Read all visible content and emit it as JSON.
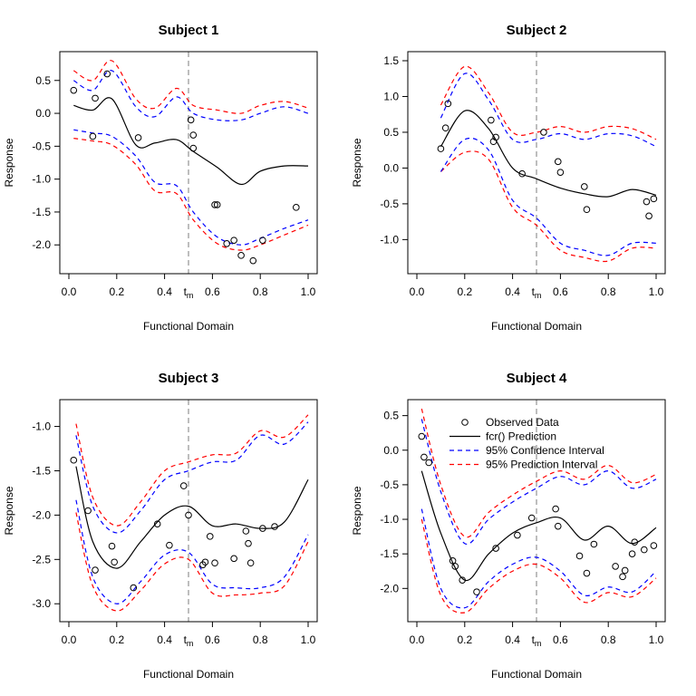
{
  "colors": {
    "prediction": "#000000",
    "confidence": "#0000ff",
    "prediction_interval": "#ff0000",
    "tm_line": "#bebebe"
  },
  "legend": {
    "placement": "top-right (inside Subject 4 panel)",
    "items": [
      {
        "label": "Observed Data",
        "style": "points"
      },
      {
        "label": "fcr() Prediction",
        "style": "solid",
        "color": "#000000"
      },
      {
        "label": "95% Confidence Interval",
        "style": "dashed",
        "color": "#0000ff"
      },
      {
        "label": "95% Prediction Interval",
        "style": "dashed",
        "color": "#ff0000"
      }
    ]
  },
  "chart_data": [
    {
      "type": "line",
      "title": "Subject 1",
      "xlabel": "Functional Domain",
      "ylabel": "Response",
      "xlim": [
        0,
        1
      ],
      "ylim": [
        -2.3,
        0.8
      ],
      "xticks": [
        "0.0",
        "0.2",
        "0.4",
        "0.6",
        "0.8",
        "1.0"
      ],
      "xtick_values": [
        0,
        0.2,
        0.4,
        0.6,
        0.8,
        1.0
      ],
      "yticks": [
        "0.5",
        "0.0",
        "-0.5",
        "-1.0",
        "-1.5",
        "-2.0"
      ],
      "ytick_values": [
        0.5,
        0,
        -0.5,
        -1.0,
        -1.5,
        -2.0
      ],
      "tm": 0.5,
      "tm_label": "t",
      "tm_sub": "m",
      "x": [
        0.02,
        0.1,
        0.18,
        0.28,
        0.36,
        0.45,
        0.52,
        0.62,
        0.72,
        0.8,
        0.9,
        1.0
      ],
      "prediction": [
        0.12,
        0.05,
        0.22,
        -0.48,
        -0.45,
        -0.4,
        -0.58,
        -0.82,
        -1.08,
        -0.88,
        -0.8,
        -0.8
      ],
      "confidence_upper": [
        0.5,
        0.35,
        0.65,
        0.1,
        -0.05,
        0.25,
        0.0,
        -0.1,
        -0.1,
        0.0,
        0.1,
        0.0
      ],
      "confidence_lower": [
        -0.25,
        -0.3,
        -0.35,
        -0.65,
        -1.05,
        -1.1,
        -1.5,
        -1.88,
        -2.0,
        -1.9,
        -1.75,
        -1.62
      ],
      "prediction_upper": [
        0.65,
        0.5,
        0.8,
        0.22,
        0.08,
        0.38,
        0.12,
        0.05,
        0.0,
        0.12,
        0.18,
        0.08
      ],
      "prediction_lower": [
        -0.38,
        -0.42,
        -0.48,
        -0.78,
        -1.18,
        -1.22,
        -1.62,
        -1.98,
        -2.08,
        -2.0,
        -1.85,
        -1.7
      ],
      "observed": [
        [
          0.02,
          0.35
        ],
        [
          0.1,
          -0.35
        ],
        [
          0.11,
          0.23
        ],
        [
          0.16,
          0.6
        ],
        [
          0.29,
          -0.37
        ],
        [
          0.51,
          -0.1
        ],
        [
          0.52,
          -0.33
        ],
        [
          0.52,
          -0.53
        ],
        [
          0.61,
          -1.39
        ],
        [
          0.62,
          -1.39
        ],
        [
          0.66,
          -1.98
        ],
        [
          0.69,
          -1.93
        ],
        [
          0.72,
          -2.16
        ],
        [
          0.77,
          -2.24
        ],
        [
          0.81,
          -1.93
        ],
        [
          0.95,
          -1.43
        ]
      ]
    },
    {
      "type": "line",
      "title": "Subject 2",
      "xlabel": "Functional Domain",
      "ylabel": "Response",
      "xlim": [
        0,
        1
      ],
      "ylim": [
        -1.35,
        1.5
      ],
      "xticks": [
        "0.0",
        "0.2",
        "0.4",
        "0.6",
        "0.8",
        "1.0"
      ],
      "xtick_values": [
        0,
        0.2,
        0.4,
        0.6,
        0.8,
        1.0
      ],
      "yticks": [
        "1.5",
        "1.0",
        "0.5",
        "0.0",
        "-0.5",
        "-1.0"
      ],
      "ytick_values": [
        1.5,
        1.0,
        0.5,
        0,
        -0.5,
        -1.0
      ],
      "tm": 0.5,
      "tm_label": "t",
      "tm_sub": "m",
      "x": [
        0.1,
        0.2,
        0.3,
        0.4,
        0.5,
        0.6,
        0.7,
        0.8,
        0.9,
        1.0
      ],
      "prediction": [
        0.3,
        0.8,
        0.55,
        0.0,
        -0.15,
        -0.28,
        -0.36,
        -0.4,
        -0.3,
        -0.38
      ],
      "confidence_upper": [
        0.7,
        1.32,
        0.95,
        0.4,
        0.4,
        0.48,
        0.4,
        0.48,
        0.45,
        0.3
      ],
      "confidence_lower": [
        -0.05,
        0.4,
        0.25,
        -0.45,
        -0.7,
        -1.05,
        -1.15,
        -1.22,
        -1.05,
        -1.05
      ],
      "prediction_upper": [
        0.88,
        1.42,
        1.05,
        0.5,
        0.5,
        0.58,
        0.5,
        0.58,
        0.55,
        0.4
      ],
      "prediction_lower": [
        -0.05,
        0.22,
        0.12,
        -0.55,
        -0.8,
        -1.15,
        -1.25,
        -1.3,
        -1.12,
        -1.12
      ],
      "observed": [
        [
          0.1,
          0.27
        ],
        [
          0.12,
          0.56
        ],
        [
          0.13,
          0.9
        ],
        [
          0.31,
          0.67
        ],
        [
          0.32,
          0.37
        ],
        [
          0.33,
          0.43
        ],
        [
          0.44,
          -0.08
        ],
        [
          0.53,
          0.5
        ],
        [
          0.59,
          0.09
        ],
        [
          0.6,
          -0.06
        ],
        [
          0.7,
          -0.26
        ],
        [
          0.71,
          -0.58
        ],
        [
          0.96,
          -0.47
        ],
        [
          0.97,
          -0.67
        ],
        [
          0.99,
          -0.43
        ]
      ]
    },
    {
      "type": "line",
      "title": "Subject 3",
      "xlabel": "Functional Domain",
      "ylabel": "Response",
      "xlim": [
        0,
        1
      ],
      "ylim": [
        -3.1,
        -0.8
      ],
      "xticks": [
        "0.0",
        "0.2",
        "0.4",
        "0.6",
        "0.8",
        "1.0"
      ],
      "xtick_values": [
        0,
        0.2,
        0.4,
        0.6,
        0.8,
        1.0
      ],
      "yticks": [
        "-1.0",
        "-1.5",
        "-2.0",
        "-2.5",
        "-3.0"
      ],
      "ytick_values": [
        -1.0,
        -1.5,
        -2.0,
        -2.5,
        -3.0
      ],
      "tm": 0.5,
      "tm_label": "t",
      "tm_sub": "m",
      "x": [
        0.03,
        0.1,
        0.2,
        0.3,
        0.4,
        0.5,
        0.6,
        0.7,
        0.8,
        0.9,
        1.0
      ],
      "prediction": [
        -1.45,
        -2.3,
        -2.6,
        -2.3,
        -2.0,
        -1.9,
        -2.12,
        -2.1,
        -2.15,
        -2.08,
        -1.6
      ],
      "confidence_upper": [
        -1.1,
        -1.9,
        -2.2,
        -1.95,
        -1.6,
        -1.5,
        -1.4,
        -1.38,
        -1.1,
        -1.2,
        -0.95
      ],
      "confidence_lower": [
        -1.83,
        -2.7,
        -3.0,
        -2.75,
        -2.45,
        -2.42,
        -2.78,
        -2.82,
        -2.82,
        -2.7,
        -2.22
      ],
      "prediction_upper": [
        -0.97,
        -1.8,
        -2.12,
        -1.85,
        -1.5,
        -1.4,
        -1.32,
        -1.3,
        -1.05,
        -1.12,
        -0.87
      ],
      "prediction_lower": [
        -1.97,
        -2.8,
        -3.08,
        -2.85,
        -2.55,
        -2.5,
        -2.88,
        -2.9,
        -2.88,
        -2.8,
        -2.3
      ],
      "observed": [
        [
          0.02,
          -1.38
        ],
        [
          0.08,
          -1.95
        ],
        [
          0.11,
          -2.62
        ],
        [
          0.18,
          -2.35
        ],
        [
          0.19,
          -2.53
        ],
        [
          0.27,
          -2.82
        ],
        [
          0.37,
          -2.1
        ],
        [
          0.42,
          -2.34
        ],
        [
          0.48,
          -1.67
        ],
        [
          0.5,
          -2.0
        ],
        [
          0.56,
          -2.56
        ],
        [
          0.57,
          -2.53
        ],
        [
          0.59,
          -2.24
        ],
        [
          0.61,
          -2.54
        ],
        [
          0.69,
          -2.49
        ],
        [
          0.74,
          -2.18
        ],
        [
          0.75,
          -2.32
        ],
        [
          0.76,
          -2.54
        ],
        [
          0.81,
          -2.15
        ],
        [
          0.86,
          -2.13
        ]
      ]
    },
    {
      "type": "line",
      "title": "Subject 4",
      "xlabel": "Functional Domain",
      "ylabel": "Response",
      "xlim": [
        0,
        1
      ],
      "ylim": [
        -2.35,
        0.6
      ],
      "xticks": [
        "0.0",
        "0.2",
        "0.4",
        "0.6",
        "0.8",
        "1.0"
      ],
      "xtick_values": [
        0,
        0.2,
        0.4,
        0.6,
        0.8,
        1.0
      ],
      "yticks": [
        "0.5",
        "0.0",
        "-0.5",
        "-1.0",
        "-1.5",
        "-2.0"
      ],
      "ytick_values": [
        0.5,
        0,
        -0.5,
        -1.0,
        -1.5,
        -2.0
      ],
      "tm": 0.5,
      "tm_label": "t",
      "tm_sub": "m",
      "x": [
        0.02,
        0.1,
        0.2,
        0.3,
        0.4,
        0.5,
        0.6,
        0.7,
        0.8,
        0.9,
        1.0
      ],
      "prediction": [
        -0.3,
        -1.2,
        -1.88,
        -1.5,
        -1.2,
        -1.05,
        -0.98,
        -1.3,
        -1.1,
        -1.35,
        -1.12
      ],
      "confidence_upper": [
        0.45,
        -0.6,
        -1.35,
        -1.0,
        -0.75,
        -0.55,
        -0.38,
        -0.5,
        -0.3,
        -0.55,
        -0.42
      ],
      "confidence_lower": [
        -0.85,
        -2.0,
        -2.28,
        -1.9,
        -1.65,
        -1.55,
        -1.75,
        -2.1,
        -1.98,
        -2.05,
        -1.75
      ],
      "prediction_upper": [
        0.6,
        -0.5,
        -1.25,
        -0.9,
        -0.65,
        -0.45,
        -0.3,
        -0.42,
        -0.22,
        -0.47,
        -0.35
      ],
      "prediction_lower": [
        -1.0,
        -2.1,
        -2.35,
        -2.0,
        -1.75,
        -1.65,
        -1.85,
        -2.2,
        -2.06,
        -2.12,
        -1.85
      ],
      "observed": [
        [
          0.02,
          0.2
        ],
        [
          0.03,
          -0.1
        ],
        [
          0.05,
          -0.18
        ],
        [
          0.15,
          -1.6
        ],
        [
          0.16,
          -1.68
        ],
        [
          0.19,
          -1.88
        ],
        [
          0.25,
          -2.05
        ],
        [
          0.33,
          -1.42
        ],
        [
          0.42,
          -1.23
        ],
        [
          0.48,
          -0.98
        ],
        [
          0.58,
          -0.85
        ],
        [
          0.59,
          -1.1
        ],
        [
          0.68,
          -1.53
        ],
        [
          0.71,
          -1.78
        ],
        [
          0.74,
          -1.36
        ],
        [
          0.83,
          -1.68
        ],
        [
          0.86,
          -1.83
        ],
        [
          0.87,
          -1.74
        ],
        [
          0.9,
          -1.5
        ],
        [
          0.91,
          -1.33
        ],
        [
          0.95,
          -1.44
        ],
        [
          0.99,
          -1.38
        ]
      ]
    }
  ]
}
